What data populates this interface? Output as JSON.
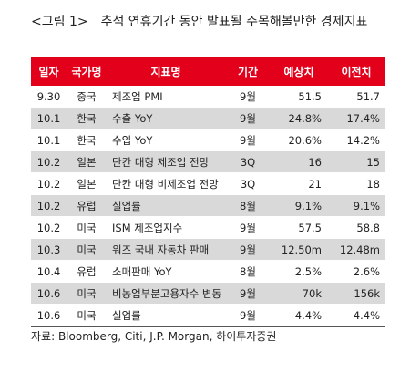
{
  "caption": {
    "figure_label": "<그림 1>",
    "title": "추석 연휴기간 동안 발표될 주목해볼만한 경제지표"
  },
  "table": {
    "headers": [
      "일자",
      "국가명",
      "지표명",
      "기간",
      "예상치",
      "이전치"
    ],
    "rows": [
      [
        "9.30",
        "중국",
        "제조업 PMI",
        "9월",
        "51.5",
        "51.7"
      ],
      [
        "10.1",
        "한국",
        "수출 YoY",
        "9월",
        "24.8%",
        "17.4%"
      ],
      [
        "10.1",
        "한국",
        "수입 YoY",
        "9월",
        "20.6%",
        "14.2%"
      ],
      [
        "10.2",
        "일본",
        "단칸 대형 제조업 전망",
        "3Q",
        "16",
        "15"
      ],
      [
        "10.2",
        "일본",
        "단칸 대형 비제조업 전망",
        "3Q",
        "21",
        "18"
      ],
      [
        "10.2",
        "유럽",
        "실업률",
        "8월",
        "9.1%",
        "9.1%"
      ],
      [
        "10.2",
        "미국",
        "ISM 제조업지수",
        "9월",
        "57.5",
        "58.8"
      ],
      [
        "10.3",
        "미국",
        "워즈 국내 자동차 판매",
        "9월",
        "12.50m",
        "12.48m"
      ],
      [
        "10.4",
        "유럽",
        "소매판매 YoY",
        "8월",
        "2.5%",
        "2.6%"
      ],
      [
        "10.6",
        "미국",
        "비농업부분고용자수 변동",
        "9월",
        "70k",
        "156k"
      ],
      [
        "10.6",
        "미국",
        "실업률",
        "9월",
        "4.4%",
        "4.4%"
      ]
    ]
  },
  "source": "자료: Bloomberg, Citi, J.P. Morgan, 하이투자증권",
  "colors": {
    "header_bg": "#e2001a",
    "header_text": "#ffffff",
    "stripe": "#d9d9d9"
  }
}
